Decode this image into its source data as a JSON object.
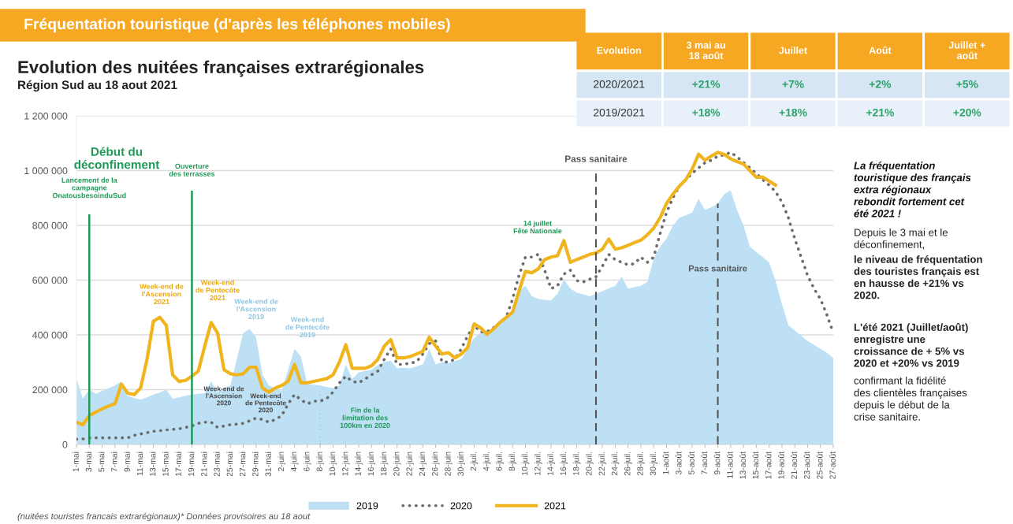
{
  "chart_data": [
    {
      "type": "line",
      "title": "Fréquentation touristique (d'après les téléphones mobiles)",
      "subtitle": "Evolution des nuitées françaises extrarégionales",
      "x": [
        "2021-05-01",
        "2021-05-02",
        "2021-05-03",
        "2021-05-04",
        "2021-05-05",
        "2021-05-06",
        "2021-05-07",
        "2021-05-08",
        "2021-05-09",
        "2021-05-10",
        "2021-05-11",
        "2021-05-12",
        "2021-05-13",
        "2021-05-14",
        "2021-05-15",
        "2021-05-16",
        "2021-05-17",
        "2021-05-18",
        "2021-05-19",
        "2021-05-20",
        "2021-05-21",
        "2021-05-22",
        "2021-05-23",
        "2021-05-24",
        "2021-05-25",
        "2021-05-26",
        "2021-05-27",
        "2021-05-28",
        "2021-05-29",
        "2021-05-30",
        "2021-05-31",
        "2021-06-01",
        "2021-06-02",
        "2021-06-03",
        "2021-06-04",
        "2021-06-05",
        "2021-06-06",
        "2021-06-07",
        "2021-06-08",
        "2021-06-09",
        "2021-06-10",
        "2021-06-11",
        "2021-06-12",
        "2021-06-13",
        "2021-06-14",
        "2021-06-15",
        "2021-06-16",
        "2021-06-17",
        "2021-06-18",
        "2021-06-19",
        "2021-06-20",
        "2021-06-21",
        "2021-06-22",
        "2021-06-23",
        "2021-06-24",
        "2021-06-25",
        "2021-06-26",
        "2021-06-27",
        "2021-06-28",
        "2021-06-29",
        "2021-06-30",
        "2021-07-01",
        "2021-07-02",
        "2021-07-03",
        "2021-07-04",
        "2021-07-05",
        "2021-07-06",
        "2021-07-07",
        "2021-07-08",
        "2021-07-09",
        "2021-07-10",
        "2021-07-11",
        "2021-07-12",
        "2021-07-13",
        "2021-07-14",
        "2021-07-15",
        "2021-07-16",
        "2021-07-17",
        "2021-07-18",
        "2021-07-19",
        "2021-07-20",
        "2021-07-21",
        "2021-07-22",
        "2021-07-23",
        "2021-07-24",
        "2021-07-25",
        "2021-07-26",
        "2021-07-27",
        "2021-07-28",
        "2021-07-29",
        "2021-07-30",
        "2021-07-31",
        "2021-08-01",
        "2021-08-02",
        "2021-08-03",
        "2021-08-04",
        "2021-08-05",
        "2021-08-06",
        "2021-08-07",
        "2021-08-08",
        "2021-08-09",
        "2021-08-10",
        "2021-08-11",
        "2021-08-12",
        "2021-08-13",
        "2021-08-14",
        "2021-08-15",
        "2021-08-16",
        "2021-08-17",
        "2021-08-18",
        "2021-08-19",
        "2021-08-20",
        "2021-08-21",
        "2021-08-22",
        "2021-08-23",
        "2021-08-24",
        "2021-08-25",
        "2021-08-26",
        "2021-08-27"
      ],
      "series": [
        {
          "name": "2019",
          "type": "area",
          "color": "#bde0f5",
          "values": [
            239000,
            167000,
            201000,
            185000,
            196000,
            205000,
            215000,
            230000,
            177000,
            170000,
            163000,
            172000,
            182000,
            190000,
            201000,
            167000,
            172000,
            178000,
            182000,
            185000,
            187000,
            230000,
            191000,
            205000,
            215000,
            311000,
            407000,
            421000,
            392000,
            254000,
            215000,
            205000,
            196000,
            273000,
            349000,
            321000,
            220000,
            218000,
            215000,
            210000,
            206000,
            215000,
            292000,
            239000,
            263000,
            268000,
            273000,
            290000,
            301000,
            306000,
            278000,
            280000,
            278000,
            285000,
            292000,
            349000,
            292000,
            301000,
            297000,
            305000,
            311000,
            350000,
            388000,
            407000,
            407000,
            425000,
            445000,
            465000,
            483000,
            560000,
            579000,
            541000,
            531000,
            528000,
            526000,
            550000,
            603000,
            569000,
            555000,
            548000,
            541000,
            550000,
            560000,
            570000,
            579000,
            612000,
            569000,
            575000,
            579000,
            593000,
            679000,
            722000,
            751000,
            799000,
            828000,
            837000,
            847000,
            897000,
            856000,
            866000,
            880000,
            914000,
            928000,
            856000,
            799000,
            722000,
            703000,
            684000,
            665000,
            598000,
            512000,
            435000,
            416000,
            397000,
            378000,
            364000,
            349000,
            335000,
            316000
          ]
        },
        {
          "name": "2020",
          "type": "line",
          "line_style": "dotted",
          "color": "#6b6b6b",
          "values": [
            19000,
            20000,
            24000,
            24000,
            24000,
            24000,
            24000,
            24000,
            24000,
            33000,
            38000,
            43000,
            48000,
            50000,
            53000,
            55000,
            57000,
            62000,
            67000,
            77000,
            81000,
            81000,
            62000,
            67000,
            72000,
            74000,
            77000,
            86000,
            96000,
            91000,
            81000,
            91000,
            105000,
            148000,
            182000,
            163000,
            148000,
            158000,
            158000,
            167000,
            191000,
            225000,
            249000,
            230000,
            225000,
            239000,
            254000,
            268000,
            311000,
            349000,
            292000,
            292000,
            297000,
            301000,
            330000,
            368000,
            378000,
            301000,
            301000,
            311000,
            349000,
            397000,
            435000,
            411000,
            411000,
            426000,
            445000,
            464000,
            531000,
            617000,
            684000,
            684000,
            694000,
            636000,
            569000,
            579000,
            622000,
            636000,
            598000,
            593000,
            603000,
            612000,
            651000,
            694000,
            675000,
            665000,
            656000,
            660000,
            684000,
            665000,
            684000,
            770000,
            847000,
            900000,
            943000,
            967000,
            990000,
            1010000,
            1029000,
            1038000,
            1053000,
            1057000,
            1067000,
            1050000,
            1030000,
            1010000,
            990000,
            967000,
            947000,
            923000,
            885000,
            828000,
            751000,
            684000,
            617000,
            569000,
            531000,
            474000,
            407000
          ]
        },
        {
          "name": "2021",
          "type": "line",
          "line_style": "solid",
          "color": "#f0b41c",
          "values": [
            81000,
            72000,
            105000,
            118000,
            130000,
            140000,
            148000,
            220000,
            187000,
            182000,
            206000,
            311000,
            450000,
            464000,
            435000,
            254000,
            230000,
            234000,
            249000,
            268000,
            359000,
            445000,
            407000,
            273000,
            258000,
            254000,
            258000,
            282000,
            282000,
            206000,
            191000,
            206000,
            215000,
            230000,
            292000,
            225000,
            225000,
            230000,
            235000,
            240000,
            254000,
            301000,
            364000,
            278000,
            278000,
            278000,
            287000,
            311000,
            359000,
            383000,
            316000,
            316000,
            321000,
            330000,
            340000,
            392000,
            359000,
            330000,
            335000,
            316000,
            330000,
            354000,
            440000,
            426000,
            402000,
            421000,
            445000,
            464000,
            483000,
            560000,
            632000,
            627000,
            641000,
            675000,
            684000,
            689000,
            744000,
            665000,
            675000,
            684000,
            694000,
            699000,
            713000,
            750000,
            713000,
            718000,
            727000,
            737000,
            746000,
            765000,
            790000,
            828000,
            880000,
            914000,
            943000,
            967000,
            1005000,
            1060000,
            1038000,
            1053000,
            1067000,
            1059000,
            1043000,
            1033000,
            1024000,
            1000000,
            976000,
            976000,
            962000,
            947000,
            null,
            null,
            null,
            null,
            null,
            null,
            null,
            null,
            null
          ]
        }
      ],
      "xlim": [
        "2021-05-01",
        "2021-08-27"
      ],
      "xticks": [
        {
          "value": "2021-05-01",
          "label": "1-mai"
        },
        {
          "value": "2021-05-03",
          "label": "3-mai"
        },
        {
          "value": "2021-05-05",
          "label": "5-mai"
        },
        {
          "value": "2021-05-07",
          "label": "7-mai"
        },
        {
          "value": "2021-05-09",
          "label": "9-mai"
        },
        {
          "value": "2021-05-11",
          "label": "11-mai"
        },
        {
          "value": "2021-05-13",
          "label": "13-mai"
        },
        {
          "value": "2021-05-15",
          "label": "15-mai"
        },
        {
          "value": "2021-05-17",
          "label": "17-mai"
        },
        {
          "value": "2021-05-19",
          "label": "19-mai"
        },
        {
          "value": "2021-05-21",
          "label": "21-mai"
        },
        {
          "value": "2021-05-23",
          "label": "23-mai"
        },
        {
          "value": "2021-05-25",
          "label": "25-mai"
        },
        {
          "value": "2021-05-27",
          "label": "27-mai"
        },
        {
          "value": "2021-05-29",
          "label": "29-mai"
        },
        {
          "value": "2021-05-31",
          "label": "31-mai"
        },
        {
          "value": "2021-06-02",
          "label": "2-juin"
        },
        {
          "value": "2021-06-04",
          "label": "4-juin"
        },
        {
          "value": "2021-06-06",
          "label": "6-juin"
        },
        {
          "value": "2021-06-08",
          "label": "8-juin"
        },
        {
          "value": "2021-06-10",
          "label": "10-juin"
        },
        {
          "value": "2021-06-12",
          "label": "12-juin"
        },
        {
          "value": "2021-06-14",
          "label": "14-juin"
        },
        {
          "value": "2021-06-16",
          "label": "16-juin"
        },
        {
          "value": "2021-06-18",
          "label": "18-juin"
        },
        {
          "value": "2021-06-20",
          "label": "20-juin"
        },
        {
          "value": "2021-06-22",
          "label": "22-juin"
        },
        {
          "value": "2021-06-24",
          "label": "24-juin"
        },
        {
          "value": "2021-06-26",
          "label": "26-juin"
        },
        {
          "value": "2021-06-28",
          "label": "28-juin"
        },
        {
          "value": "2021-06-30",
          "label": "30-juin"
        },
        {
          "value": "2021-07-02",
          "label": "2-juil."
        },
        {
          "value": "2021-07-04",
          "label": "4-juil."
        },
        {
          "value": "2021-07-06",
          "label": "6-juil."
        },
        {
          "value": "2021-07-08",
          "label": "8-juil."
        },
        {
          "value": "2021-07-10",
          "label": "10-juil."
        },
        {
          "value": "2021-07-12",
          "label": "12-juil."
        },
        {
          "value": "2021-07-14",
          "label": "14-juil."
        },
        {
          "value": "2021-07-16",
          "label": "16-juil."
        },
        {
          "value": "2021-07-18",
          "label": "18-juil."
        },
        {
          "value": "2021-07-20",
          "label": "20-juil."
        },
        {
          "value": "2021-07-22",
          "label": "22-juil."
        },
        {
          "value": "2021-07-24",
          "label": "24-juil."
        },
        {
          "value": "2021-07-26",
          "label": "26-juil."
        },
        {
          "value": "2021-07-28",
          "label": "28-juil."
        },
        {
          "value": "2021-07-30",
          "label": "30-juil."
        },
        {
          "value": "2021-08-01",
          "label": "1-août"
        },
        {
          "value": "2021-08-03",
          "label": "3-août"
        },
        {
          "value": "2021-08-05",
          "label": "5-août"
        },
        {
          "value": "2021-08-07",
          "label": "7-août"
        },
        {
          "value": "2021-08-09",
          "label": "9-août"
        },
        {
          "value": "2021-08-11",
          "label": "11-août"
        },
        {
          "value": "2021-08-13",
          "label": "13-août"
        },
        {
          "value": "2021-08-15",
          "label": "15-août"
        },
        {
          "value": "2021-08-17",
          "label": "17-août"
        },
        {
          "value": "2021-08-19",
          "label": "19-août"
        },
        {
          "value": "2021-08-21",
          "label": "21-août"
        },
        {
          "value": "2021-08-23",
          "label": "23-août"
        },
        {
          "value": "2021-08-25",
          "label": "25-août"
        },
        {
          "value": "2021-08-27",
          "label": "27-août"
        }
      ],
      "ylim": [
        0,
        1200000
      ],
      "yticks": [
        0,
        {
          "value": 200000,
          "label": "200 000"
        },
        {
          "value": 400000,
          "label": "400 000"
        },
        {
          "value": 600000,
          "label": "600 000"
        },
        {
          "value": 800000,
          "label": "800 000"
        },
        {
          "value": 1000000,
          "label": "1 000 000"
        },
        {
          "value": 1200000,
          "label": "1 200 000"
        }
      ],
      "grid": "y",
      "legend": "bottom",
      "ref_lines": [
        {
          "axis": "x",
          "value": "2021-05-03",
          "label": "Lancement de la\ncampagne\nOnatousbesoinduSud",
          "color": "#1e9a57",
          "line_style": "solid"
        },
        {
          "axis": "x",
          "value": "2021-05-19",
          "label": "Ouverture\ndes terrasses",
          "color": "#1e9a57",
          "line_style": "solid"
        },
        {
          "axis": "x",
          "value": "2021-06-08",
          "label": "Fin de la\nlimitation des\n100km en 2020",
          "color": "#1e9a57",
          "line_style": "dotted"
        },
        {
          "axis": "x",
          "value": "2021-07-21",
          "label": "Pass sanitaire",
          "color": "#555555",
          "line_style": "dashed"
        },
        {
          "axis": "x",
          "value": "2021-08-09",
          "label": "Pass sanitaire",
          "color": "#555555",
          "line_style": "dashed"
        }
      ],
      "annotations": [
        "Début du\ndéconfinement",
        "Région Sud au 18 aout 2021",
        "(nuitées touristes francais extrarégionaux)* Données provisoires au 18 aout",
        "Week-end de\nl'Ascension\n2021",
        "Week-end\nde Pentecôte\n2021",
        "Week-end de\nl'Ascension\n2019",
        "Week-end\nde Pentecôte\n2019",
        "Week-end de\nl'Ascension\n2020",
        "Week-end\nde Pentecôte\n2020",
        "14 juillet\nFête Nationale"
      ]
    },
    {
      "type": "other",
      "categories": [
        "Evolution",
        "3 mai au\n18 août",
        "Juillet",
        "Août",
        "Juillet +\naoût"
      ],
      "y_categories": [
        "2020/2021",
        "2019/2021"
      ],
      "cell_labels": [
        [
          "+21%",
          "+7%",
          "+2%",
          "+5%"
        ],
        [
          "+18%",
          "+18%",
          "+21%",
          "+20%"
        ]
      ]
    },
    {
      "type": "other",
      "title": "La fréquentation\ntouristique des français\nextra régionaux\nrebondit fortement cet\nété 2021 !",
      "annotations": [
        "Depuis le 3 mai et le\ndéconfinement,",
        "le niveau de fréquentation\ndes touristes français est\nen hausse de +21% vs\n2020.",
        "L'été 2021 (Juillet/août)\nenregistre une\ncroissance de + 5% vs\n2020 et +20% vs 2019",
        "confirmant la fidélité\ndes clientèles françaises\ndepuis le début de la\ncrise sanitaire."
      ]
    }
  ]
}
